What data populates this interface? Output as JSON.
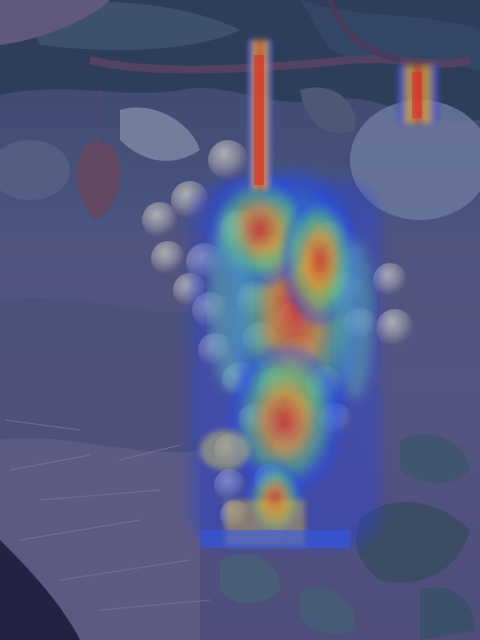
{
  "image": {
    "subject": "grape-cluster-attention-heatmap",
    "palette": {
      "blue_tint": "#3a3f9a",
      "ground": "#5a5a78",
      "foliage": "#3b4e5a",
      "heat_low": "#2040ff",
      "heat_mid": "#40e0a0",
      "heat_high": "#ffd020",
      "heat_peak": "#ff3010"
    }
  }
}
